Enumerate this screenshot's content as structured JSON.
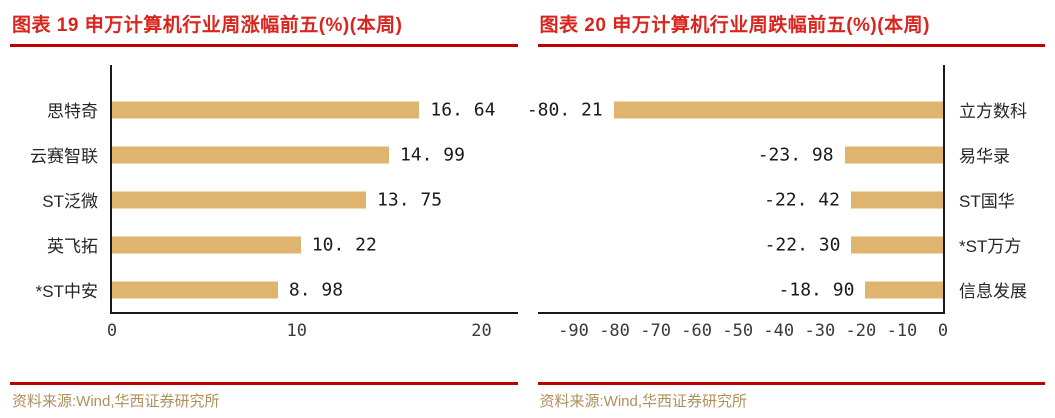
{
  "panels": [
    {
      "title": "图表 19 申万计算机行业周涨幅前五(%)(本周)",
      "source": "资料来源:Wind,华西证券研究所"
    },
    {
      "title": "图表 20 申万计算机行业周跌幅前五(%)(本周)",
      "source": "资料来源:Wind,华西证券研究所"
    }
  ],
  "colors": {
    "caption_red": "#D9251D",
    "divider_red": "#C00000",
    "bar_gold": "#DFB46E",
    "source_tan": "#B28E5C",
    "axis_black": "#1a1a1a"
  },
  "chart_data": [
    {
      "type": "bar",
      "orientation": "horizontal",
      "bar_anchor": "left",
      "title": "图表 19 申万计算机行业周涨幅前五(%)(本周)",
      "categories": [
        "思特奇",
        "云赛智联",
        "ST泛微",
        "英飞拓",
        "*ST中安"
      ],
      "values": [
        16.64,
        14.99,
        13.75,
        10.22,
        8.98
      ],
      "value_labels": [
        "16. 64",
        "14. 99",
        "13. 75",
        "10. 22",
        "8. 98"
      ],
      "xlim": [
        0,
        20
      ],
      "xticks": [
        0,
        10,
        20
      ],
      "xtick_labels": [
        "0",
        "10",
        "20"
      ],
      "bar_color": "#DFB46E",
      "grid": false,
      "legend": null
    },
    {
      "type": "bar",
      "orientation": "horizontal",
      "bar_anchor": "right",
      "title": "图表 20 申万计算机行业周跌幅前五(%)(本周)",
      "categories": [
        "立方数科",
        "易华录",
        "ST国华",
        "*ST万方",
        "信息发展"
      ],
      "values": [
        -80.21,
        -23.98,
        -22.42,
        -22.3,
        -18.9
      ],
      "value_labels": [
        "-80. 21",
        "-23. 98",
        "-22. 42",
        "-22. 30",
        "-18. 90"
      ],
      "xlim": [
        -90,
        0
      ],
      "xticks": [
        -90,
        -80,
        -70,
        -60,
        -50,
        -40,
        -30,
        -20,
        -10,
        0
      ],
      "xtick_labels": [
        "-90",
        "-80",
        "-70",
        "-60",
        "-50",
        "-40",
        "-30",
        "-20",
        "-10",
        "0"
      ],
      "bar_color": "#DFB46E",
      "grid": false,
      "legend": null
    }
  ]
}
